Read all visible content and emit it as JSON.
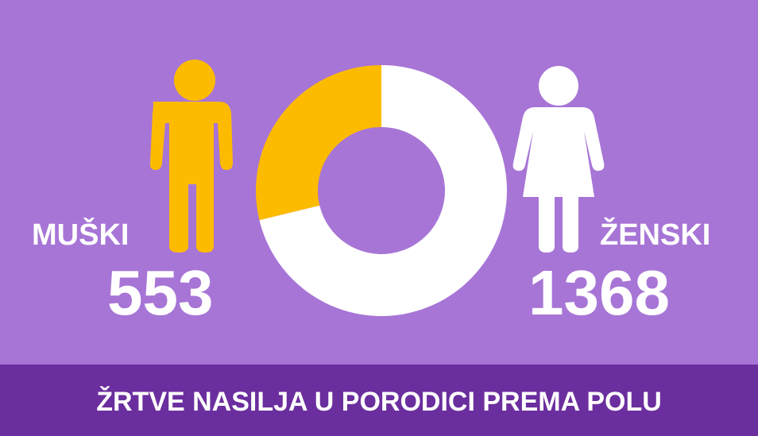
{
  "chart_data": {
    "type": "donut",
    "title": "ŽRTVE NASILJA U PORODICI PREMA POLU",
    "categories": [
      "MUŠKI",
      "ŽENSKI"
    ],
    "values": [
      553,
      1368
    ],
    "colors": [
      "#fdbb00",
      "#ffffff"
    ]
  }
}
